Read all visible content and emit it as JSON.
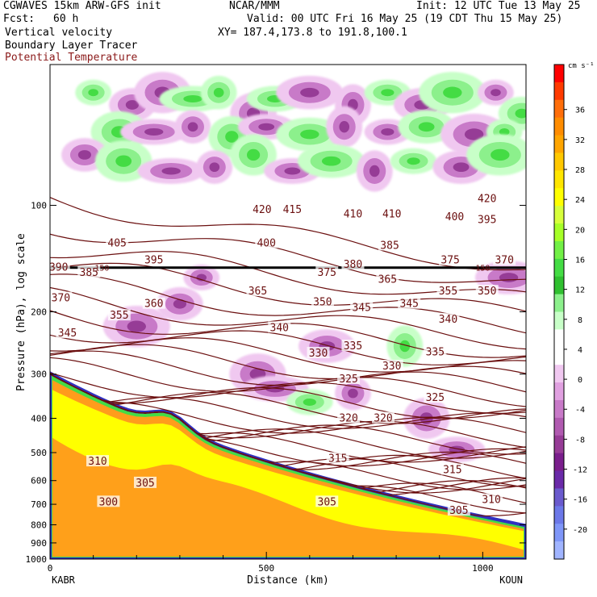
{
  "header": {
    "model": "CGWAVES 15km ARW-GFS init",
    "org": "NCAR/MMM",
    "init": "Init: 12 UTC Tue 13 May 25",
    "fcst_label": "Fcst:",
    "fcst_value": "60 h",
    "valid": "Valid: 00 UTC Fri 16 May 25 (19 CDT Thu 15 May 25)",
    "field1": "Vertical velocity",
    "xy": "XY= 187.4,173.8 to 191.8,100.1",
    "field2": "Boundary Layer Tracer",
    "field3": "Potential Temperature"
  },
  "chart_data": {
    "type": "heatmap",
    "title": "Vertical velocity",
    "xlabel": "Distance (km)",
    "ylabel": "Pressure (hPa), log scale",
    "xlim": [
      0,
      1100
    ],
    "xticks": [
      0,
      500,
      1000
    ],
    "ylim_hpa": [
      1000,
      40
    ],
    "yticks_hpa": [
      100,
      200,
      300,
      400,
      500,
      600,
      700,
      800,
      900,
      1000
    ],
    "x_endpoints": {
      "left": "KABR",
      "right": "KOUN"
    },
    "colorbar": {
      "units": "cm s⁻¹",
      "ticks": [
        36,
        32,
        28,
        24,
        20,
        16,
        12,
        8,
        4,
        0,
        -4,
        -8,
        -12,
        -16,
        -20
      ],
      "colors": [
        "#ff0000",
        "#ff3a00",
        "#ff6e0a",
        "#ff8c00",
        "#ffa500",
        "#ffc800",
        "#ffe600",
        "#ffff00",
        "#d7ff3c",
        "#a6ff28",
        "#72f046",
        "#44dc44",
        "#30c030",
        "#8cf08c",
        "#c8ffc8",
        "#ffffff",
        "#ffffff",
        "#f0c8f0",
        "#e0a0e0",
        "#c87ac8",
        "#b05ab0",
        "#963c96",
        "#7a1e8c",
        "#6a2aa8",
        "#6a5acd",
        "#6c78e8",
        "#7f96f8",
        "#a0b4ff"
      ]
    },
    "theta_labels": [
      {
        "text": "420",
        "x": 490,
        "p": 103
      },
      {
        "text": "415",
        "x": 560,
        "p": 103
      },
      {
        "text": "410",
        "x": 700,
        "p": 106
      },
      {
        "text": "410",
        "x": 790,
        "p": 106
      },
      {
        "text": "420",
        "x": 1010,
        "p": 96
      },
      {
        "text": "400",
        "x": 935,
        "p": 108
      },
      {
        "text": "395",
        "x": 1010,
        "p": 110
      },
      {
        "text": "405",
        "x": 155,
        "p": 128
      },
      {
        "text": "400",
        "x": 500,
        "p": 128
      },
      {
        "text": "385",
        "x": 785,
        "p": 130
      },
      {
        "text": "395",
        "x": 240,
        "p": 143
      },
      {
        "text": "375",
        "x": 925,
        "p": 143
      },
      {
        "text": "370",
        "x": 1050,
        "p": 143
      },
      {
        "text": "390",
        "x": 20,
        "p": 150
      },
      {
        "text": "385",
        "x": 90,
        "p": 155
      },
      {
        "text": "375",
        "x": 640,
        "p": 155
      },
      {
        "text": "380",
        "x": 700,
        "p": 147
      },
      {
        "text": "365",
        "x": 780,
        "p": 162
      },
      {
        "text": "365",
        "x": 480,
        "p": 175
      },
      {
        "text": "355",
        "x": 920,
        "p": 175
      },
      {
        "text": "350",
        "x": 1010,
        "p": 175
      },
      {
        "text": "370",
        "x": 25,
        "p": 183
      },
      {
        "text": "360",
        "x": 240,
        "p": 190
      },
      {
        "text": "350",
        "x": 630,
        "p": 188
      },
      {
        "text": "345",
        "x": 720,
        "p": 195
      },
      {
        "text": "345",
        "x": 830,
        "p": 190
      },
      {
        "text": "355",
        "x": 160,
        "p": 205
      },
      {
        "text": "340",
        "x": 530,
        "p": 222
      },
      {
        "text": "340",
        "x": 920,
        "p": 210
      },
      {
        "text": "345",
        "x": 40,
        "p": 230
      },
      {
        "text": "335",
        "x": 700,
        "p": 250
      },
      {
        "text": "335",
        "x": 890,
        "p": 260
      },
      {
        "text": "330",
        "x": 620,
        "p": 262
      },
      {
        "text": "330",
        "x": 790,
        "p": 285
      },
      {
        "text": "325",
        "x": 690,
        "p": 310
      },
      {
        "text": "325",
        "x": 890,
        "p": 350
      },
      {
        "text": "320",
        "x": 690,
        "p": 400
      },
      {
        "text": "320",
        "x": 770,
        "p": 400
      },
      {
        "text": "315",
        "x": 665,
        "p": 520
      },
      {
        "text": "315",
        "x": 930,
        "p": 560
      },
      {
        "text": "310",
        "x": 110,
        "p": 530
      },
      {
        "text": "310",
        "x": 1020,
        "p": 680
      },
      {
        "text": "305",
        "x": 220,
        "p": 610
      },
      {
        "text": "305",
        "x": 640,
        "p": 690
      },
      {
        "text": "305",
        "x": 945,
        "p": 730
      },
      {
        "text": "300",
        "x": 135,
        "p": 690
      }
    ],
    "tropopause_labels": [
      {
        "text": "150",
        "x": 120,
        "p": 150
      },
      {
        "text": "150",
        "x": 1000,
        "p": 150
      }
    ]
  }
}
